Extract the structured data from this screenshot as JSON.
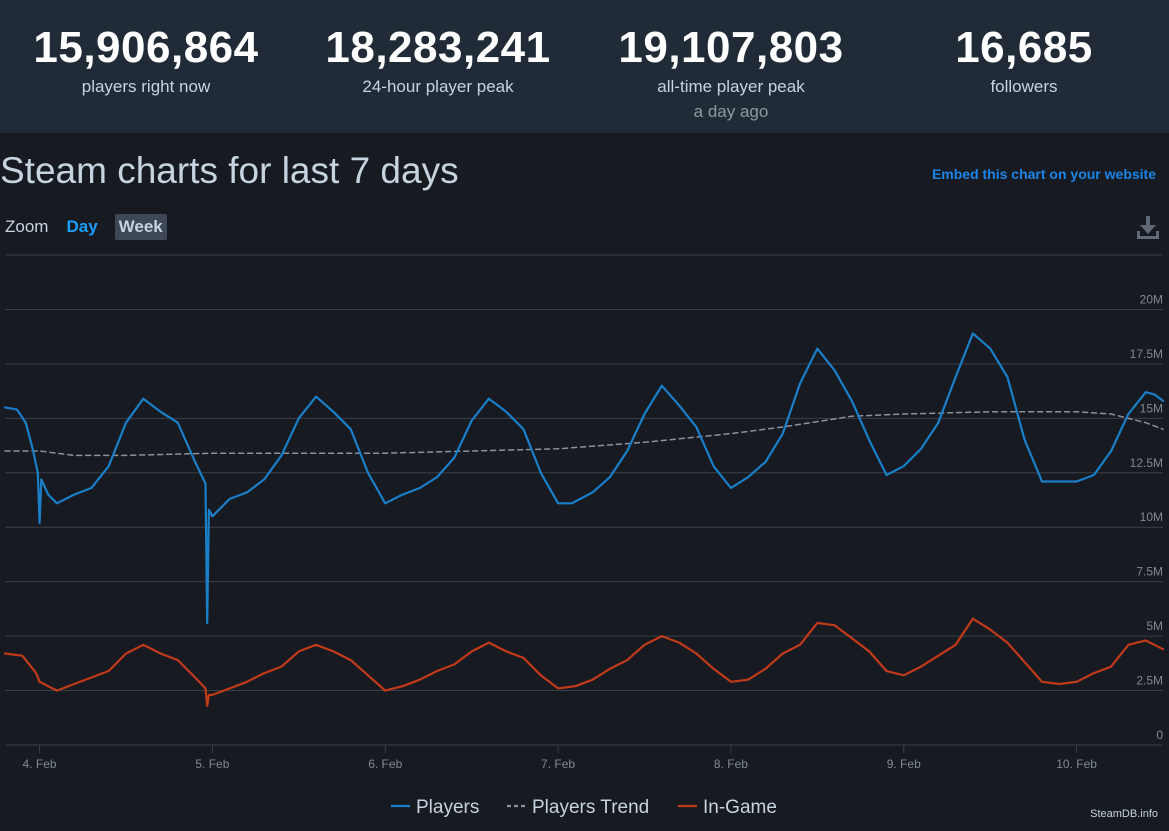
{
  "stats": [
    {
      "value": "15,906,864",
      "label": "players right now",
      "sub": ""
    },
    {
      "value": "18,283,241",
      "label": "24-hour player peak",
      "sub": ""
    },
    {
      "value": "19,107,803",
      "label": "all-time player peak",
      "sub": "a day ago"
    },
    {
      "value": "16,685",
      "label": "followers",
      "sub": ""
    }
  ],
  "header": {
    "title": "Steam charts for last 7 days",
    "embed_link": "Embed this chart on your website"
  },
  "zoom": {
    "label": "Zoom",
    "options": [
      "Day",
      "Week"
    ],
    "selected": "Week"
  },
  "icons": {
    "download": "download-icon"
  },
  "credit": "SteamDB.info",
  "colors": {
    "players": "#1a7fc9",
    "trend": "#8a929a",
    "in_game": "#c23a1a",
    "grid": "#3a3f48",
    "accent": "#1a9fff"
  },
  "chart_data": {
    "type": "line",
    "x_start": "3.8 Feb",
    "x_end": "10.7 Feb",
    "x_ticks": [
      {
        "x": 4,
        "label": "4. Feb"
      },
      {
        "x": 5,
        "label": "5. Feb"
      },
      {
        "x": 6,
        "label": "6. Feb"
      },
      {
        "x": 7,
        "label": "7. Feb"
      },
      {
        "x": 8,
        "label": "8. Feb"
      },
      {
        "x": 9,
        "label": "9. Feb"
      },
      {
        "x": 10,
        "label": "10. Feb"
      }
    ],
    "y_ticks": [
      {
        "value": 0,
        "label": "0"
      },
      {
        "value": 2.5,
        "label": "2.5M"
      },
      {
        "value": 5,
        "label": "5M"
      },
      {
        "value": 7.5,
        "label": "7.5M"
      },
      {
        "value": 10,
        "label": "10M"
      },
      {
        "value": 12.5,
        "label": "12.5M"
      },
      {
        "value": 15,
        "label": "15M"
      },
      {
        "value": 17.5,
        "label": "17.5M"
      },
      {
        "value": 20,
        "label": "20M"
      }
    ],
    "ylim": [
      0,
      22.5
    ],
    "y_unit": "millions",
    "grid": true,
    "legend_position": "bottom-center",
    "series": [
      {
        "name": "Players",
        "style": "solid",
        "points": [
          [
            3.8,
            15.5
          ],
          [
            3.87,
            15.4
          ],
          [
            3.92,
            14.8
          ],
          [
            3.96,
            13.6
          ],
          [
            3.99,
            12.5
          ],
          [
            4.0,
            10.2
          ],
          [
            4.01,
            12.2
          ],
          [
            4.05,
            11.5
          ],
          [
            4.1,
            11.1
          ],
          [
            4.2,
            11.5
          ],
          [
            4.3,
            11.8
          ],
          [
            4.4,
            12.8
          ],
          [
            4.5,
            14.8
          ],
          [
            4.6,
            15.9
          ],
          [
            4.7,
            15.3
          ],
          [
            4.8,
            14.8
          ],
          [
            4.9,
            13.0
          ],
          [
            4.96,
            12.0
          ],
          [
            4.97,
            5.6
          ],
          [
            4.98,
            10.8
          ],
          [
            5.0,
            10.5
          ],
          [
            5.1,
            11.3
          ],
          [
            5.2,
            11.6
          ],
          [
            5.3,
            12.2
          ],
          [
            5.4,
            13.3
          ],
          [
            5.5,
            15.0
          ],
          [
            5.6,
            16.0
          ],
          [
            5.7,
            15.3
          ],
          [
            5.8,
            14.5
          ],
          [
            5.9,
            12.5
          ],
          [
            6.0,
            11.1
          ],
          [
            6.1,
            11.5
          ],
          [
            6.2,
            11.8
          ],
          [
            6.3,
            12.3
          ],
          [
            6.4,
            13.2
          ],
          [
            6.5,
            14.9
          ],
          [
            6.6,
            15.9
          ],
          [
            6.7,
            15.3
          ],
          [
            6.8,
            14.5
          ],
          [
            6.9,
            12.5
          ],
          [
            7.0,
            11.1
          ],
          [
            7.08,
            11.1
          ],
          [
            7.2,
            11.6
          ],
          [
            7.3,
            12.3
          ],
          [
            7.4,
            13.5
          ],
          [
            7.5,
            15.2
          ],
          [
            7.6,
            16.5
          ],
          [
            7.7,
            15.6
          ],
          [
            7.8,
            14.6
          ],
          [
            7.9,
            12.8
          ],
          [
            8.0,
            11.8
          ],
          [
            8.1,
            12.3
          ],
          [
            8.2,
            13.0
          ],
          [
            8.3,
            14.3
          ],
          [
            8.4,
            16.6
          ],
          [
            8.5,
            18.2
          ],
          [
            8.6,
            17.2
          ],
          [
            8.7,
            15.8
          ],
          [
            8.8,
            14.0
          ],
          [
            8.9,
            12.4
          ],
          [
            9.0,
            12.8
          ],
          [
            9.1,
            13.6
          ],
          [
            9.2,
            14.8
          ],
          [
            9.3,
            16.9
          ],
          [
            9.4,
            18.9
          ],
          [
            9.5,
            18.2
          ],
          [
            9.6,
            16.9
          ],
          [
            9.7,
            14.0
          ],
          [
            9.8,
            12.1
          ],
          [
            9.9,
            12.1
          ],
          [
            10.0,
            12.1
          ],
          [
            10.1,
            12.4
          ],
          [
            10.2,
            13.5
          ],
          [
            10.3,
            15.2
          ],
          [
            10.4,
            16.2
          ],
          [
            10.45,
            16.1
          ],
          [
            10.5,
            15.8
          ]
        ]
      },
      {
        "name": "Players Trend",
        "style": "dashed",
        "points": [
          [
            3.8,
            13.5
          ],
          [
            4.0,
            13.5
          ],
          [
            4.2,
            13.3
          ],
          [
            4.5,
            13.3
          ],
          [
            5.0,
            13.4
          ],
          [
            5.5,
            13.4
          ],
          [
            6.0,
            13.4
          ],
          [
            6.5,
            13.5
          ],
          [
            7.0,
            13.6
          ],
          [
            7.5,
            13.9
          ],
          [
            8.0,
            14.3
          ],
          [
            8.3,
            14.6
          ],
          [
            8.7,
            15.1
          ],
          [
            9.0,
            15.2
          ],
          [
            9.5,
            15.3
          ],
          [
            10.0,
            15.3
          ],
          [
            10.2,
            15.2
          ],
          [
            10.4,
            14.8
          ],
          [
            10.5,
            14.5
          ]
        ]
      },
      {
        "name": "In-Game",
        "style": "solid",
        "points": [
          [
            3.8,
            4.2
          ],
          [
            3.9,
            4.1
          ],
          [
            3.98,
            3.3
          ],
          [
            4.0,
            2.9
          ],
          [
            4.1,
            2.5
          ],
          [
            4.2,
            2.8
          ],
          [
            4.3,
            3.1
          ],
          [
            4.4,
            3.4
          ],
          [
            4.5,
            4.2
          ],
          [
            4.6,
            4.6
          ],
          [
            4.7,
            4.2
          ],
          [
            4.8,
            3.9
          ],
          [
            4.9,
            3.1
          ],
          [
            4.96,
            2.6
          ],
          [
            4.97,
            1.8
          ],
          [
            4.98,
            2.3
          ],
          [
            5.0,
            2.3
          ],
          [
            5.1,
            2.6
          ],
          [
            5.2,
            2.9
          ],
          [
            5.3,
            3.3
          ],
          [
            5.4,
            3.6
          ],
          [
            5.5,
            4.3
          ],
          [
            5.6,
            4.6
          ],
          [
            5.7,
            4.3
          ],
          [
            5.8,
            3.9
          ],
          [
            5.9,
            3.2
          ],
          [
            6.0,
            2.5
          ],
          [
            6.1,
            2.7
          ],
          [
            6.2,
            3.0
          ],
          [
            6.3,
            3.4
          ],
          [
            6.4,
            3.7
          ],
          [
            6.5,
            4.3
          ],
          [
            6.6,
            4.7
          ],
          [
            6.7,
            4.3
          ],
          [
            6.8,
            4.0
          ],
          [
            6.9,
            3.2
          ],
          [
            7.0,
            2.6
          ],
          [
            7.1,
            2.7
          ],
          [
            7.2,
            3.0
          ],
          [
            7.3,
            3.5
          ],
          [
            7.4,
            3.9
          ],
          [
            7.5,
            4.6
          ],
          [
            7.6,
            5.0
          ],
          [
            7.7,
            4.7
          ],
          [
            7.8,
            4.2
          ],
          [
            7.9,
            3.5
          ],
          [
            8.0,
            2.9
          ],
          [
            8.1,
            3.0
          ],
          [
            8.2,
            3.5
          ],
          [
            8.3,
            4.2
          ],
          [
            8.4,
            4.6
          ],
          [
            8.5,
            5.6
          ],
          [
            8.6,
            5.5
          ],
          [
            8.7,
            4.9
          ],
          [
            8.8,
            4.3
          ],
          [
            8.9,
            3.4
          ],
          [
            9.0,
            3.2
          ],
          [
            9.1,
            3.6
          ],
          [
            9.2,
            4.1
          ],
          [
            9.3,
            4.6
          ],
          [
            9.4,
            5.8
          ],
          [
            9.5,
            5.3
          ],
          [
            9.6,
            4.7
          ],
          [
            9.7,
            3.8
          ],
          [
            9.8,
            2.9
          ],
          [
            9.9,
            2.8
          ],
          [
            10.0,
            2.9
          ],
          [
            10.1,
            3.3
          ],
          [
            10.2,
            3.6
          ],
          [
            10.3,
            4.6
          ],
          [
            10.4,
            4.8
          ],
          [
            10.45,
            4.6
          ],
          [
            10.5,
            4.4
          ]
        ]
      }
    ]
  }
}
